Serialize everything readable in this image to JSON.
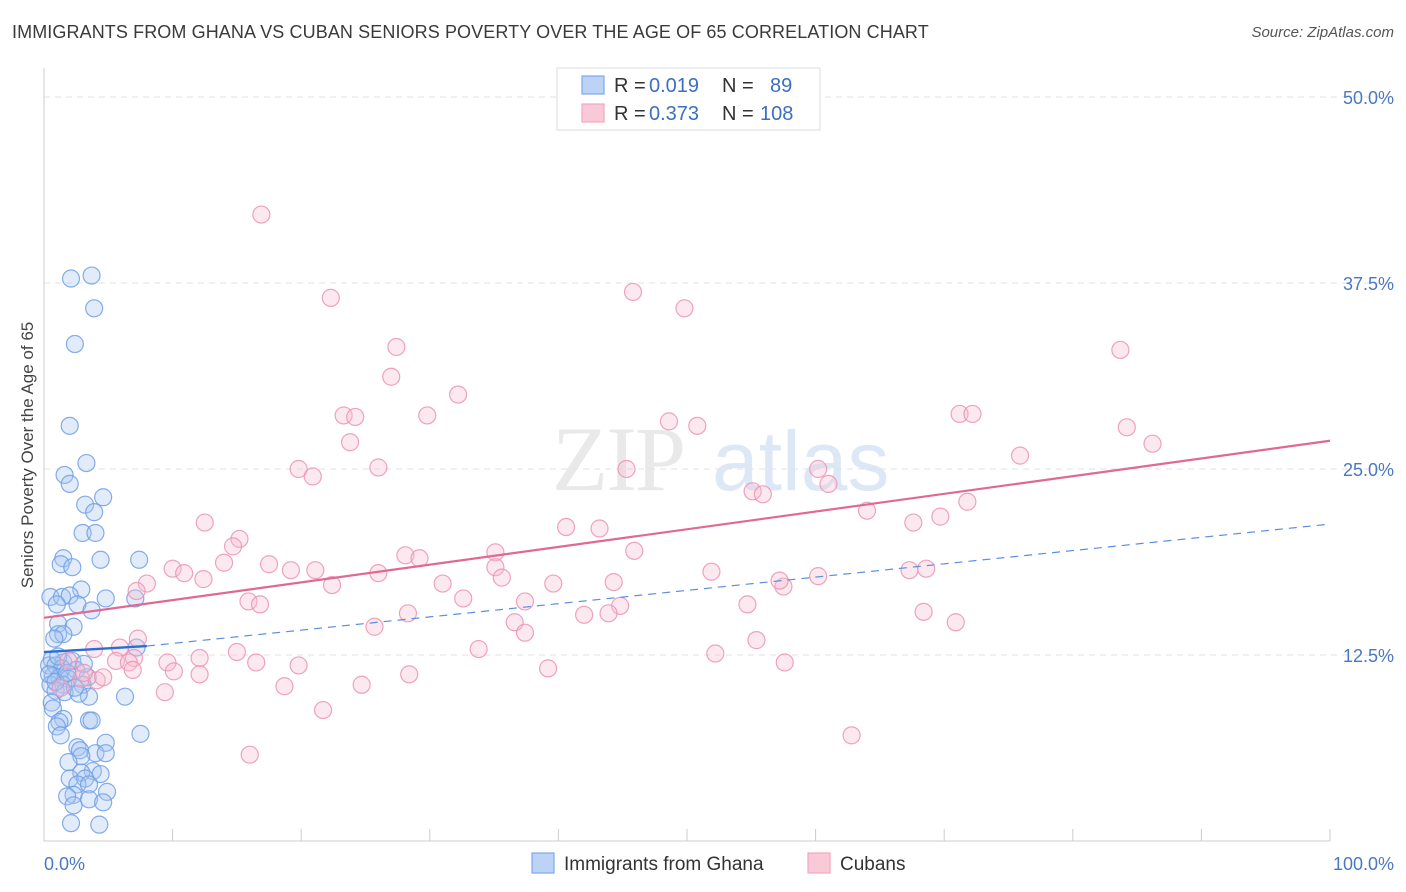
{
  "title": "IMMIGRANTS FROM GHANA VS CUBAN SENIORS POVERTY OVER THE AGE OF 65 CORRELATION CHART",
  "source": "Source: ZipAtlas.com",
  "watermark": {
    "zip": "ZIP",
    "atlas": "atlas"
  },
  "chart_data": {
    "type": "scatter",
    "title": "IMMIGRANTS FROM GHANA VS CUBAN SENIORS POVERTY OVER THE AGE OF 65 CORRELATION CHART",
    "xlabel": "",
    "ylabel": "Seniors Poverty Over the Age of 65",
    "xlim": [
      0,
      100
    ],
    "ylim": [
      0,
      50
    ],
    "x_tick_labels": [
      "0.0%",
      "100.0%"
    ],
    "y_ticks": [
      12.5,
      25.0,
      37.5,
      50.0
    ],
    "y_tick_labels": [
      "12.5%",
      "25.0%",
      "37.5%",
      "50.0%"
    ],
    "grid": true,
    "legend": {
      "placement": "top-center",
      "entries": [
        {
          "r_label": "R =",
          "r": "0.019",
          "n_label": "N =",
          "n": "89"
        },
        {
          "r_label": "R =",
          "r": "0.373",
          "n_label": "N =",
          "n": "108"
        }
      ]
    },
    "series": [
      {
        "name": "Immigrants from Ghana",
        "color": "#7aaaee",
        "trend": {
          "x": [
            0,
            8
          ],
          "y": [
            12.7,
            13.1
          ],
          "dashed_to_x": 100,
          "dashed_y_end": 21.3
        },
        "points": [
          [
            2.1,
            37.8
          ],
          [
            3.7,
            38.0
          ],
          [
            3.9,
            35.8
          ],
          [
            2.4,
            33.4
          ],
          [
            2.0,
            27.9
          ],
          [
            3.3,
            25.4
          ],
          [
            1.6,
            24.6
          ],
          [
            2.0,
            24.0
          ],
          [
            4.6,
            23.1
          ],
          [
            3.2,
            22.6
          ],
          [
            3.9,
            22.1
          ],
          [
            3.0,
            20.7
          ],
          [
            4.0,
            20.7
          ],
          [
            1.5,
            19.0
          ],
          [
            1.3,
            18.6
          ],
          [
            2.2,
            18.4
          ],
          [
            4.4,
            18.9
          ],
          [
            7.4,
            18.9
          ],
          [
            2.9,
            16.9
          ],
          [
            0.5,
            16.4
          ],
          [
            1.4,
            16.4
          ],
          [
            2.0,
            16.5
          ],
          [
            1.0,
            15.9
          ],
          [
            2.6,
            15.9
          ],
          [
            4.8,
            16.3
          ],
          [
            7.1,
            16.3
          ],
          [
            3.7,
            15.5
          ],
          [
            1.1,
            14.6
          ],
          [
            2.3,
            14.4
          ],
          [
            1.1,
            13.9
          ],
          [
            1.5,
            13.9
          ],
          [
            0.8,
            13.6
          ],
          [
            7.2,
            13.0
          ],
          [
            0.6,
            12.2
          ],
          [
            1.5,
            12.0
          ],
          [
            2.2,
            12.1
          ],
          [
            0.4,
            11.8
          ],
          [
            0.9,
            11.8
          ],
          [
            1.4,
            11.6
          ],
          [
            2.5,
            11.5
          ],
          [
            0.7,
            11.1
          ],
          [
            1.2,
            11.0
          ],
          [
            1.9,
            10.9
          ],
          [
            3.4,
            11.0
          ],
          [
            0.5,
            10.5
          ],
          [
            1.5,
            10.5
          ],
          [
            3.0,
            10.5
          ],
          [
            0.9,
            10.1
          ],
          [
            1.6,
            10.0
          ],
          [
            3.5,
            9.7
          ],
          [
            6.3,
            9.7
          ],
          [
            0.6,
            9.3
          ],
          [
            0.7,
            8.9
          ],
          [
            1.5,
            8.2
          ],
          [
            3.5,
            8.1
          ],
          [
            1.2,
            8.0
          ],
          [
            3.7,
            8.1
          ],
          [
            1.0,
            7.7
          ],
          [
            7.5,
            7.2
          ],
          [
            1.3,
            7.1
          ],
          [
            4.8,
            6.6
          ],
          [
            2.6,
            6.3
          ],
          [
            2.8,
            6.1
          ],
          [
            4.0,
            5.9
          ],
          [
            4.8,
            5.9
          ],
          [
            2.9,
            5.7
          ],
          [
            1.9,
            5.3
          ],
          [
            3.8,
            4.7
          ],
          [
            2.9,
            4.6
          ],
          [
            4.4,
            4.5
          ],
          [
            2.0,
            4.2
          ],
          [
            3.2,
            4.2
          ],
          [
            2.6,
            3.8
          ],
          [
            3.5,
            3.8
          ],
          [
            2.3,
            3.1
          ],
          [
            4.9,
            3.3
          ],
          [
            1.8,
            3.0
          ],
          [
            3.5,
            2.8
          ],
          [
            4.6,
            2.6
          ],
          [
            2.3,
            2.4
          ],
          [
            2.1,
            1.2
          ],
          [
            4.3,
            1.1
          ],
          [
            0.4,
            11.2
          ],
          [
            1.1,
            12.4
          ],
          [
            2.7,
            9.9
          ],
          [
            0.9,
            10.7
          ],
          [
            1.8,
            11.3
          ],
          [
            2.4,
            10.3
          ],
          [
            3.1,
            11.9
          ]
        ]
      },
      {
        "name": "Cubans",
        "color": "#f3a6c0",
        "trend": {
          "x": [
            0,
            100
          ],
          "y": [
            15.0,
            26.9
          ]
        },
        "points": [
          [
            16.9,
            42.1
          ],
          [
            45.8,
            36.9
          ],
          [
            22.3,
            36.5
          ],
          [
            49.8,
            35.8
          ],
          [
            27.4,
            33.2
          ],
          [
            83.7,
            33.0
          ],
          [
            27.0,
            31.2
          ],
          [
            32.2,
            30.0
          ],
          [
            23.3,
            28.6
          ],
          [
            24.2,
            28.5
          ],
          [
            29.8,
            28.6
          ],
          [
            48.6,
            28.2
          ],
          [
            71.2,
            28.7
          ],
          [
            72.2,
            28.7
          ],
          [
            50.8,
            27.9
          ],
          [
            84.2,
            27.8
          ],
          [
            23.8,
            26.8
          ],
          [
            86.2,
            26.7
          ],
          [
            75.9,
            25.9
          ],
          [
            26.0,
            25.1
          ],
          [
            19.8,
            25.0
          ],
          [
            45.3,
            25.0
          ],
          [
            60.2,
            25.0
          ],
          [
            20.9,
            24.5
          ],
          [
            61.0,
            24.0
          ],
          [
            55.1,
            23.5
          ],
          [
            55.9,
            23.3
          ],
          [
            71.8,
            22.8
          ],
          [
            64.0,
            22.2
          ],
          [
            69.7,
            21.8
          ],
          [
            12.5,
            21.4
          ],
          [
            67.6,
            21.4
          ],
          [
            40.6,
            21.1
          ],
          [
            43.2,
            21.0
          ],
          [
            15.2,
            20.3
          ],
          [
            14.7,
            19.8
          ],
          [
            35.1,
            19.4
          ],
          [
            45.9,
            19.5
          ],
          [
            28.1,
            19.2
          ],
          [
            29.2,
            19.0
          ],
          [
            17.5,
            18.6
          ],
          [
            10.0,
            18.3
          ],
          [
            14.0,
            18.7
          ],
          [
            10.9,
            18.0
          ],
          [
            19.2,
            18.2
          ],
          [
            21.1,
            18.2
          ],
          [
            35.1,
            18.4
          ],
          [
            26.0,
            18.0
          ],
          [
            51.9,
            18.1
          ],
          [
            68.6,
            18.3
          ],
          [
            67.3,
            18.2
          ],
          [
            60.2,
            17.8
          ],
          [
            35.6,
            17.7
          ],
          [
            12.4,
            17.6
          ],
          [
            8.0,
            17.3
          ],
          [
            22.4,
            17.2
          ],
          [
            31.0,
            17.3
          ],
          [
            39.6,
            17.3
          ],
          [
            44.3,
            17.4
          ],
          [
            57.5,
            17.1
          ],
          [
            57.2,
            17.5
          ],
          [
            7.2,
            16.8
          ],
          [
            15.9,
            16.1
          ],
          [
            16.8,
            15.9
          ],
          [
            32.6,
            16.3
          ],
          [
            37.4,
            16.1
          ],
          [
            44.8,
            15.8
          ],
          [
            54.7,
            15.9
          ],
          [
            43.9,
            15.3
          ],
          [
            28.3,
            15.3
          ],
          [
            42.0,
            15.2
          ],
          [
            68.4,
            15.4
          ],
          [
            70.9,
            14.7
          ],
          [
            25.7,
            14.4
          ],
          [
            36.6,
            14.7
          ],
          [
            37.4,
            14.0
          ],
          [
            7.3,
            13.6
          ],
          [
            55.4,
            13.5
          ],
          [
            5.9,
            13.0
          ],
          [
            3.9,
            12.9
          ],
          [
            33.8,
            12.9
          ],
          [
            52.2,
            12.6
          ],
          [
            5.6,
            12.1
          ],
          [
            12.1,
            12.3
          ],
          [
            7.0,
            12.3
          ],
          [
            6.6,
            12.0
          ],
          [
            9.6,
            12.0
          ],
          [
            16.5,
            12.0
          ],
          [
            19.8,
            11.8
          ],
          [
            6.9,
            11.5
          ],
          [
            10.1,
            11.4
          ],
          [
            12.1,
            11.2
          ],
          [
            2.9,
            10.9
          ],
          [
            18.7,
            10.4
          ],
          [
            24.7,
            10.5
          ],
          [
            28.4,
            11.2
          ],
          [
            21.7,
            8.8
          ],
          [
            4.1,
            10.8
          ],
          [
            1.3,
            10.3
          ],
          [
            3.1,
            11.3
          ],
          [
            1.9,
            12.1
          ],
          [
            4.6,
            11.0
          ],
          [
            9.4,
            10.0
          ],
          [
            39.2,
            11.6
          ],
          [
            57.6,
            12.0
          ],
          [
            16.0,
            5.8
          ],
          [
            62.8,
            7.1
          ],
          [
            15.0,
            12.7
          ]
        ]
      }
    ]
  },
  "bottom_legend": [
    {
      "label": "Immigrants from Ghana",
      "color": "#7aaaee"
    },
    {
      "label": "Cubans",
      "color": "#f3a6c0"
    }
  ]
}
